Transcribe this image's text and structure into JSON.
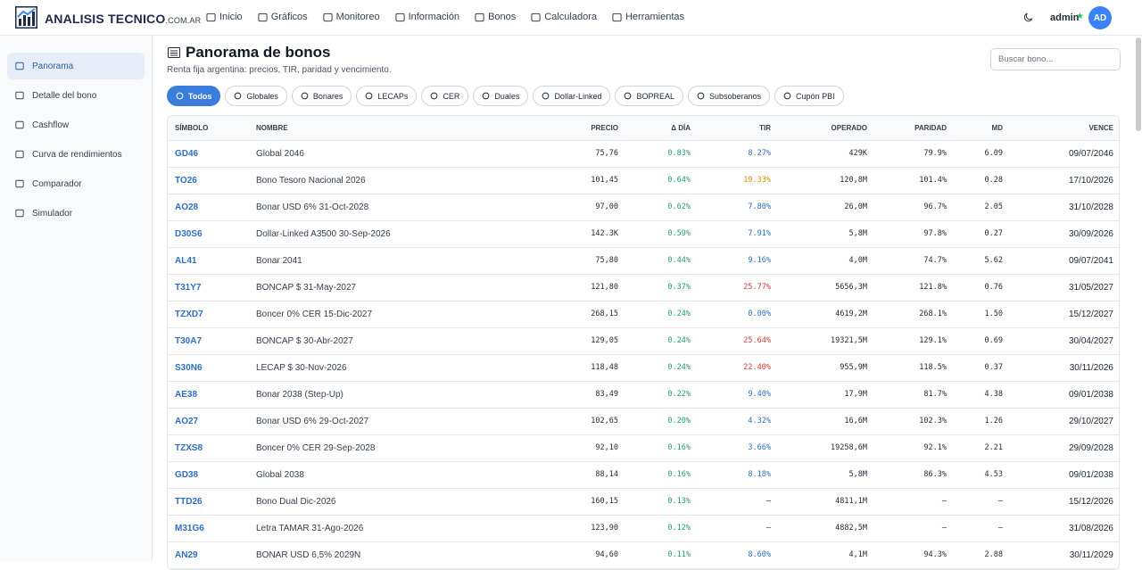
{
  "header": {
    "brand": "ANALISIS TECNICO",
    "brand_suffix": ".COM.AR",
    "nav": [
      "Inicio",
      "Gráficos",
      "Monitoreo",
      "Información",
      "Bonos",
      "Calculadora",
      "Herramientas"
    ],
    "user": "admin",
    "avatar": "AD"
  },
  "sidebar": [
    "Panorama",
    "Detalle del bono",
    "Cashflow",
    "Curva de rendimientos",
    "Comparador",
    "Simulador"
  ],
  "main": {
    "title": "Panorama de bonos",
    "subtitle": "Renta fija argentina: precios, TIR, paridad y vencimiento.",
    "search_placeholder": "Buscar bono...",
    "filters": [
      "Todos",
      "Globales",
      "Bonares",
      "LECAPs",
      "CER",
      "Duales",
      "Dollar-Linked",
      "BOPREAL",
      "Subsoberanos",
      "Cupón PBI"
    ]
  },
  "table": {
    "columns": [
      "SÍMBOLO",
      "NOMBRE",
      "PRECIO",
      "Δ DÍA",
      "TIR",
      "OPERADO",
      "PARIDAD",
      "MD",
      "VENCE"
    ],
    "rows": [
      [
        "GD46",
        "Global 2046",
        "75,76",
        "0.83%",
        "8.27%",
        "429K",
        "79.9%",
        "6.09",
        "09/07/2046"
      ],
      [
        "TO26",
        "Bono Tesoro Nacional 2026",
        "101,45",
        "0.64%",
        "19.33%",
        "120,8M",
        "101.4%",
        "0.28",
        "17/10/2026"
      ],
      [
        "AO28",
        "Bonar USD 6% 31-Oct-2028",
        "97,00",
        "0.62%",
        "7.80%",
        "26,0M",
        "96.7%",
        "2.05",
        "31/10/2028"
      ],
      [
        "D30S6",
        "Dollar-Linked A3500 30-Sep-2026",
        "142.3K",
        "0.59%",
        "7.91%",
        "5,8M",
        "97.8%",
        "0.27",
        "30/09/2026"
      ],
      [
        "AL41",
        "Bonar 2041",
        "75,80",
        "0.44%",
        "9.16%",
        "4,0M",
        "74.7%",
        "5.62",
        "09/07/2041"
      ],
      [
        "T31Y7",
        "BONCAP $ 31-May-2027",
        "121,80",
        "0.37%",
        "25.77%",
        "5656,3M",
        "121.8%",
        "0.76",
        "31/05/2027"
      ],
      [
        "TZXD7",
        "Boncer 0% CER 15-Dic-2027",
        "268,15",
        "0.24%",
        "0.00%",
        "4619,2M",
        "268.1%",
        "1.50",
        "15/12/2027"
      ],
      [
        "T30A7",
        "BONCAP $ 30-Abr-2027",
        "129,05",
        "0.24%",
        "25.64%",
        "19321,5M",
        "129.1%",
        "0.69",
        "30/04/2027"
      ],
      [
        "S30N6",
        "LECAP $ 30-Nov-2026",
        "118,48",
        "0.24%",
        "22.40%",
        "955,9M",
        "118.5%",
        "0.37",
        "30/11/2026"
      ],
      [
        "AE38",
        "Bonar 2038 (Step-Up)",
        "83,49",
        "0.22%",
        "9.40%",
        "17,9M",
        "81.7%",
        "4.38",
        "09/01/2038"
      ],
      [
        "AO27",
        "Bonar USD 6% 29-Oct-2027",
        "102,65",
        "0.20%",
        "4.32%",
        "16,6M",
        "102.3%",
        "1.26",
        "29/10/2027"
      ],
      [
        "TZXS8",
        "Boncer 0% CER 29-Sep-2028",
        "92,10",
        "0.16%",
        "3.66%",
        "19258,6M",
        "92.1%",
        "2.21",
        "29/09/2028"
      ],
      [
        "GD38",
        "Global 2038",
        "88,14",
        "0.16%",
        "8.18%",
        "5,8M",
        "86.3%",
        "4.53",
        "09/01/2038"
      ],
      [
        "TTD26",
        "Bono Dual Dic-2026",
        "160,15",
        "0.13%",
        "—",
        "4811,1M",
        "—",
        "—",
        "15/12/2026"
      ],
      [
        "M31G6",
        "Letra TAMAR 31-Ago-2026",
        "123,90",
        "0.12%",
        "—",
        "4882,5M",
        "—",
        "—",
        "31/08/2026"
      ],
      [
        "AN29",
        "BONAR USD 6,5% 2029N",
        "94,60",
        "0.11%",
        "8.60%",
        "4,1M",
        "94.3%",
        "2.88",
        "30/11/2029"
      ]
    ]
  }
}
